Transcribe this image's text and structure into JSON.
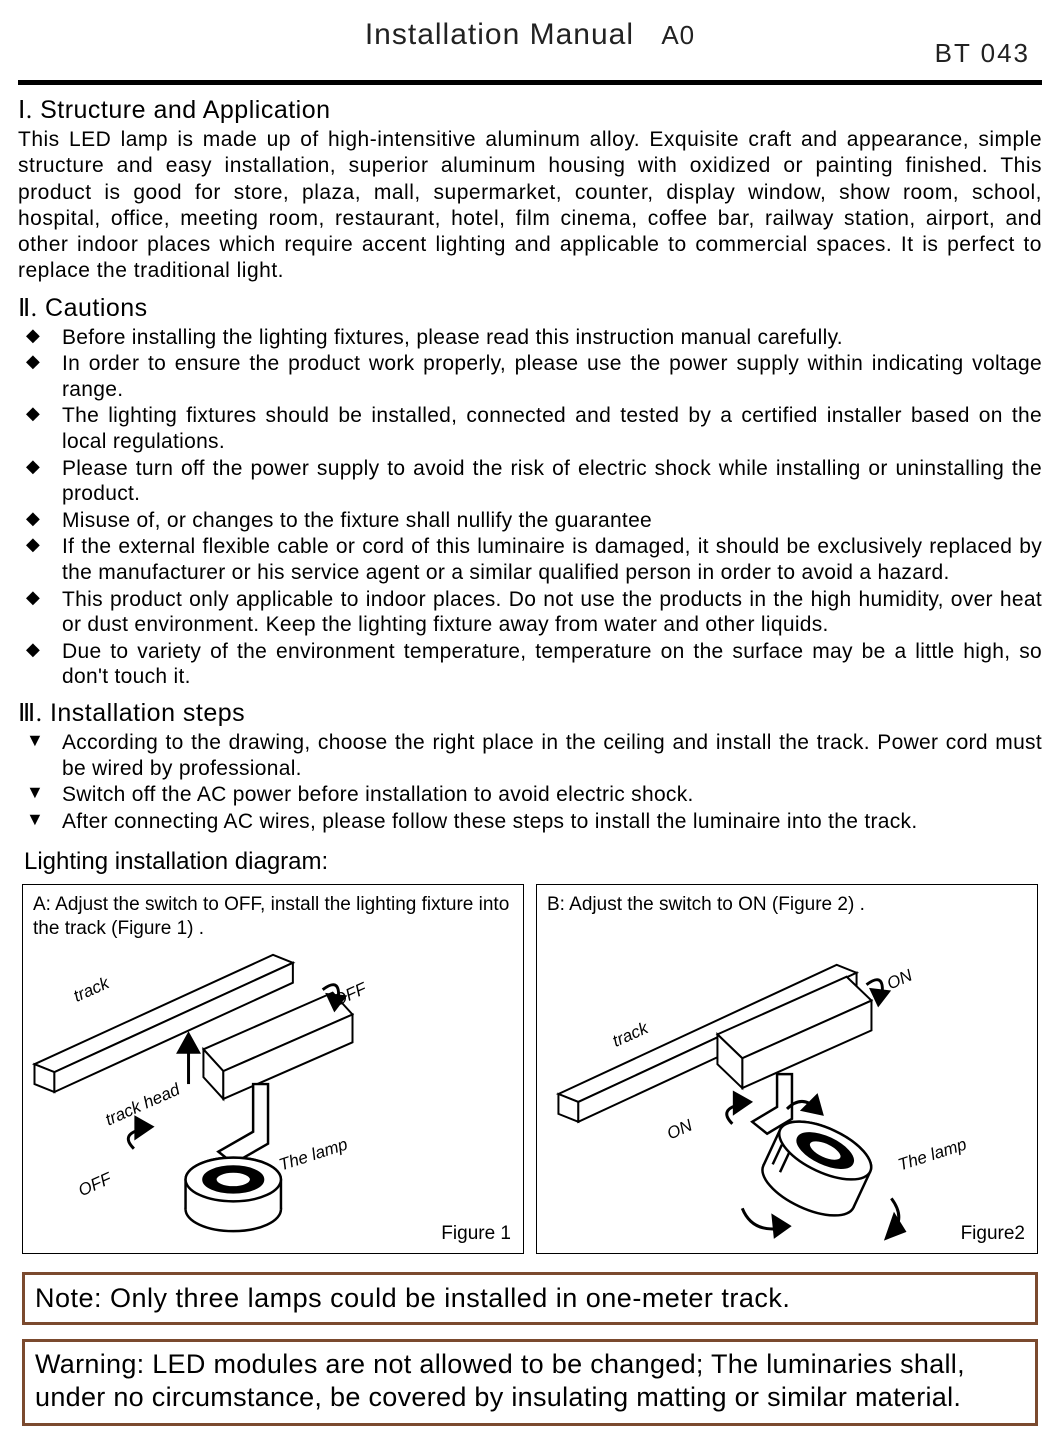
{
  "header": {
    "title": "Installation Manual",
    "revision": "A0",
    "model": "BT 043"
  },
  "section1": {
    "heading_roman": "Ⅰ.",
    "heading_text": "Structure and Application",
    "body": "This LED lamp is made up of high-intensitive aluminum alloy. Exquisite craft and appearance, simple structure and easy installation, superior aluminum housing with oxidized or painting finished. This product is good for store, plaza, mall, supermarket, counter, display window, show room, school, hospital, office, meeting room, restaurant, hotel, film cinema, coffee bar, railway station, airport, and other indoor places which require accent lighting and applicable to commercial spaces. It is perfect to replace the traditional light."
  },
  "section2": {
    "heading_roman": "Ⅱ.",
    "heading_text": "Cautions",
    "bullet_marker": "◆",
    "items": [
      "Before installing the lighting fixtures, please read this instruction manual carefully.",
      "In order to ensure the product work properly, please use the power supply within indicating voltage range.",
      "The lighting fixtures should be installed, connected and tested by a certified installer based on the local regulations.",
      "Please turn off the power supply to avoid the risk of electric shock while installing or uninstalling the product.",
      "Misuse of, or changes to the fixture shall nullify the guarantee",
      "If the external flexible cable or cord of this luminaire is damaged, it should be exclusively replaced by the manufacturer or his service agent or a similar qualified person in order to avoid a hazard.",
      "This product only applicable to indoor places. Do not use the products in the high humidity, over heat or dust environment. Keep the lighting fixture away from water and other liquids.",
      "Due to variety of the environment temperature, temperature on the surface may be a little high, so don't touch it."
    ]
  },
  "section3": {
    "heading_roman": "Ⅲ.",
    "heading_text": "Installation steps",
    "bullet_marker": "▼",
    "items": [
      "According to the drawing, choose the right place in the ceiling and install the track. Power cord must be wired by professional.",
      "Switch off the AC power before installation to avoid electric shock.",
      "After connecting AC wires, please follow these steps to install the luminaire into the track."
    ]
  },
  "diagram": {
    "title": "Lighting installation diagram:",
    "panelA": {
      "caption": "A:   Adjust the switch to OFF, install the lighting fixture into the track (Figure 1) .",
      "figure": "Figure 1",
      "labels": {
        "track": "track",
        "track_head": "track head",
        "off1": "OFF",
        "off2": "OFF",
        "lamp": "The lamp"
      }
    },
    "panelB": {
      "caption": "B:   Adjust the switch to ON  (Figure 2) .",
      "figure": "Figure2",
      "labels": {
        "track": "track",
        "on1": "ON",
        "on2": "ON",
        "lamp": "The lamp"
      }
    }
  },
  "note": "Note: Only three lamps could be installed in one-meter track.",
  "warning": "Warning: LED modules are not allowed to be changed; The luminaries shall, under no circumstance, be covered by insulating matting or similar material.",
  "colors": {
    "rule": "#000000",
    "box_border": "#7b4a2e",
    "text": "#000000"
  }
}
